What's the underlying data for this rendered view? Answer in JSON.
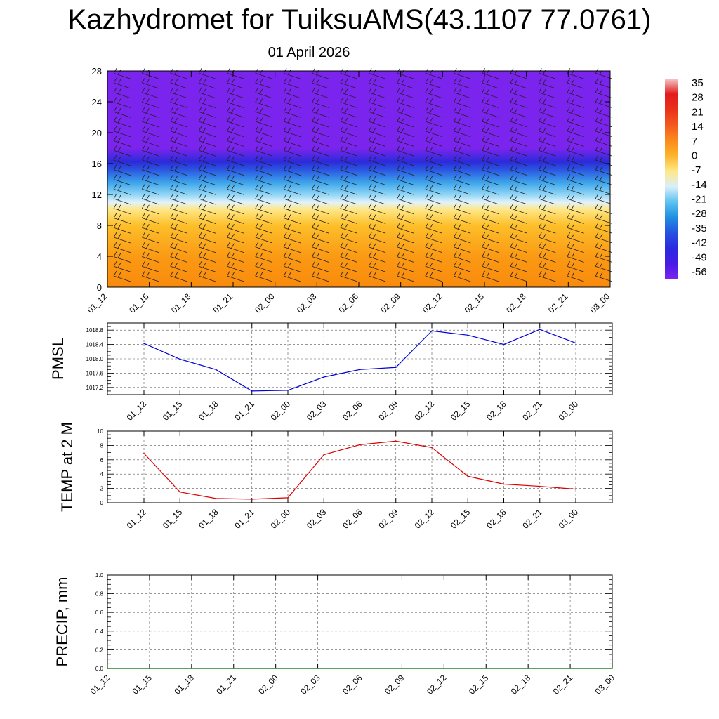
{
  "header": {
    "title": "Kazhydromet for TuiksuAMS(43.1107 77.0761)",
    "date": "01 April 2026"
  },
  "chart_data": [
    {
      "id": "cross-section",
      "type": "heatmap",
      "description": "Vertical cross-section of temperature (shaded) with wind barbs",
      "x_tick_labels": [
        "01_12",
        "01_15",
        "01_18",
        "01_21",
        "02_00",
        "02_03",
        "02_06",
        "02_09",
        "02_12",
        "02_15",
        "02_18",
        "02_21",
        "03_00"
      ],
      "y_ticks": [
        0,
        4,
        8,
        12,
        16,
        20,
        24,
        28
      ],
      "ylim": [
        0,
        28
      ],
      "colorbar": {
        "labels": [
          "35",
          "28",
          "21",
          "14",
          "7",
          "0",
          "-7",
          "-14",
          "-21",
          "-28",
          "-35",
          "-42",
          "-49",
          "-56"
        ],
        "colors": [
          "#f5c9c9",
          "#e31a1c",
          "#e9321a",
          "#f4591f",
          "#fb8a1c",
          "#fdb52b",
          "#fee98a",
          "#d9effa",
          "#5cc0f0",
          "#1d8fe0",
          "#2750e0",
          "#2a2ae0",
          "#4a1ae8",
          "#7d24f0"
        ]
      },
      "bands": [
        {
          "level": 0,
          "value": 5,
          "color": "#f98a0c"
        },
        {
          "level": 4,
          "value": 1,
          "color": "#fb9a14"
        },
        {
          "level": 8,
          "value": -4,
          "color": "#fdbf2a"
        },
        {
          "level": 10,
          "value": -8,
          "color": "#fee683"
        },
        {
          "level": 11,
          "value": -14,
          "color": "#e3f3fb"
        },
        {
          "level": 12,
          "value": -20,
          "color": "#8fd5f5"
        },
        {
          "level": 13.5,
          "value": -30,
          "color": "#3ea6ea"
        },
        {
          "level": 15,
          "value": -42,
          "color": "#2c5fe3"
        },
        {
          "level": 16.2,
          "value": -52,
          "color": "#2b2bd9"
        },
        {
          "level": 18,
          "value": -58,
          "color": "#7b24ee"
        },
        {
          "level": 28,
          "value": -60,
          "color": "#7b24ee"
        }
      ]
    },
    {
      "id": "pmsl",
      "type": "line",
      "ylabel": "PMSL",
      "x_tick_labels": [
        "01_12",
        "01_15",
        "01_18",
        "01_21",
        "02_00",
        "02_03",
        "02_06",
        "02_09",
        "02_12",
        "02_15",
        "02_18",
        "02_21",
        "03_00"
      ],
      "y_ticks": [
        1017.2,
        1017.6,
        1018.0,
        1018.4,
        1018.8
      ],
      "y_tick_labels": [
        "1017.2",
        "1017.6",
        "1018.0",
        "1018.4",
        "1018.8"
      ],
      "ylim": [
        1017.0,
        1019.0
      ],
      "color": "#0000dd",
      "values": [
        1018.43,
        1017.99,
        1017.7,
        1017.1,
        1017.12,
        1017.49,
        1017.7,
        1017.76,
        1018.78,
        1018.66,
        1018.4,
        1018.82,
        1018.44
      ]
    },
    {
      "id": "temp2m",
      "type": "line",
      "ylabel": "TEMP at 2 M",
      "x_tick_labels": [
        "01_12",
        "01_15",
        "01_18",
        "01_21",
        "02_00",
        "02_03",
        "02_06",
        "02_09",
        "02_12",
        "02_15",
        "02_18",
        "02_21",
        "03_00"
      ],
      "y_ticks": [
        0,
        2,
        4,
        6,
        8,
        10
      ],
      "y_tick_labels": [
        "0",
        "2",
        "4",
        "6",
        "8",
        "10"
      ],
      "ylim": [
        0,
        10
      ],
      "color": "#dd0000",
      "values": [
        6.9,
        1.5,
        0.6,
        0.5,
        0.7,
        6.7,
        8.1,
        8.6,
        7.7,
        3.7,
        2.6,
        2.3,
        1.9
      ]
    },
    {
      "id": "precip",
      "type": "line",
      "ylabel": "PRECIP, mm",
      "x_tick_labels": [
        "01_12",
        "01_15",
        "01_18",
        "01_21",
        "02_00",
        "02_03",
        "02_06",
        "02_09",
        "02_12",
        "02_15",
        "02_18",
        "02_21",
        "03_00"
      ],
      "y_ticks": [
        0,
        0.2,
        0.4,
        0.6,
        0.8,
        1.0
      ],
      "y_tick_labels": [
        "0.0",
        "0.2",
        "0.4",
        "0.6",
        "0.8",
        "1.0"
      ],
      "ylim": [
        0,
        1
      ],
      "color": "#006400",
      "values": [
        0,
        0,
        0,
        0,
        0,
        0,
        0,
        0,
        0,
        0,
        0,
        0,
        0
      ]
    }
  ]
}
